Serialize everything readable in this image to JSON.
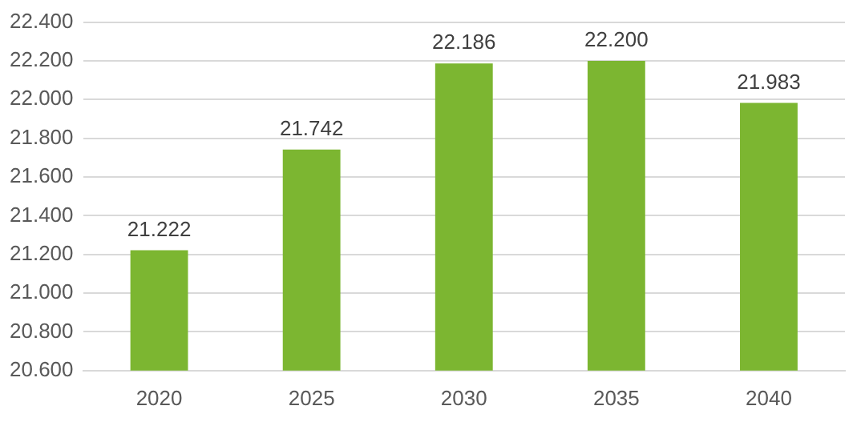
{
  "chart_data": {
    "type": "bar",
    "categories": [
      "2020",
      "2025",
      "2030",
      "2035",
      "2040"
    ],
    "values": [
      21.222,
      21.742,
      22.186,
      22.2,
      21.983
    ],
    "value_labels": [
      "21.222",
      "21.742",
      "22.186",
      "22.200",
      "21.983"
    ],
    "color": "#7cb631",
    "ylim": [
      20.6,
      22.4
    ],
    "yticks": [
      {
        "value": 20.6,
        "label": "20.600"
      },
      {
        "value": 20.8,
        "label": "20.800"
      },
      {
        "value": 21.0,
        "label": "21.000"
      },
      {
        "value": 21.2,
        "label": "21.200"
      },
      {
        "value": 21.4,
        "label": "21.400"
      },
      {
        "value": 21.6,
        "label": "21.600"
      },
      {
        "value": 21.8,
        "label": "21.800"
      },
      {
        "value": 22.0,
        "label": "22.000"
      },
      {
        "value": 22.2,
        "label": "22.200"
      },
      {
        "value": 22.4,
        "label": "22.400"
      }
    ],
    "grid": "y",
    "legend": false
  }
}
